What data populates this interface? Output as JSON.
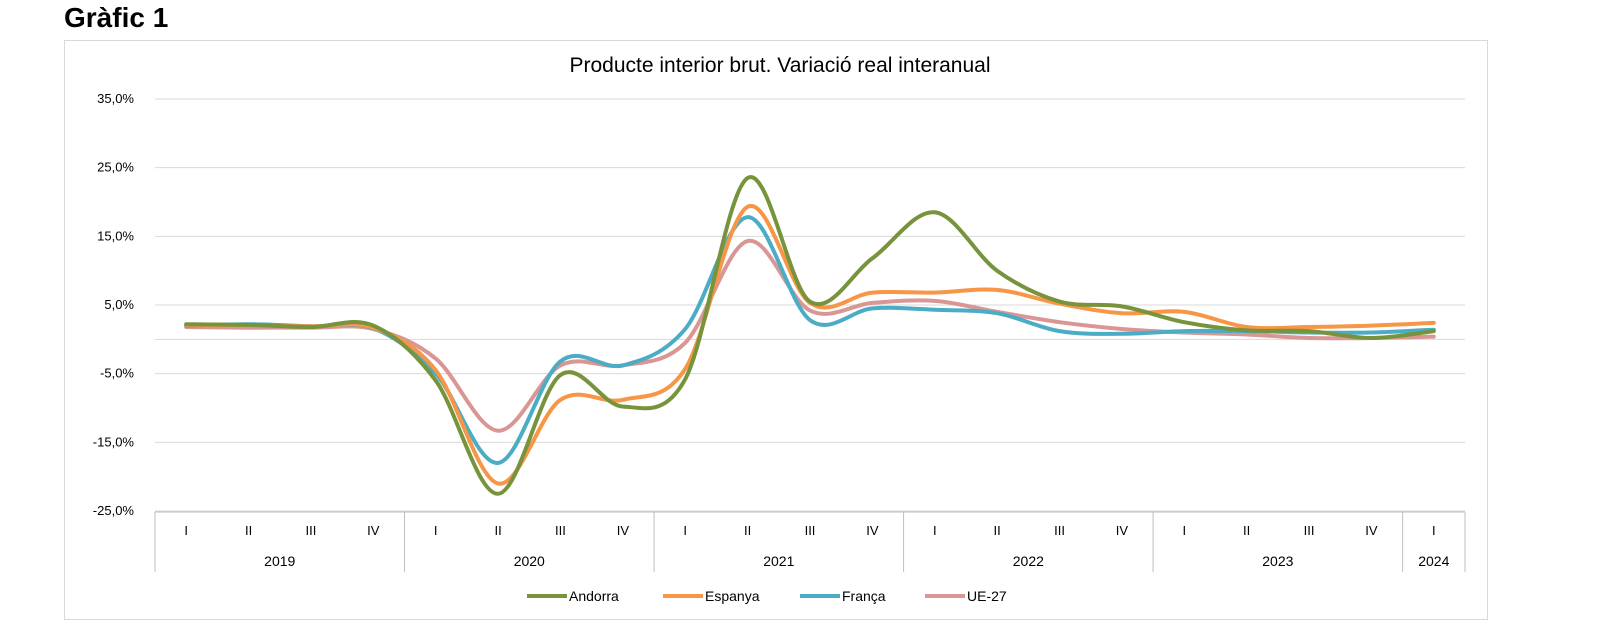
{
  "heading": "Gràfic 1",
  "chart_data": {
    "type": "line",
    "title": "Producte interior brut. Variació real interanual",
    "xlabel": "",
    "ylabel": "",
    "ylim": [
      -25,
      35
    ],
    "yticks": [
      35,
      25,
      15,
      5,
      -5,
      -15,
      -25
    ],
    "ytick_labels": [
      "35,0%",
      "25,0%",
      "15,0%",
      "5,0%",
      "-5,0%",
      "-15,0%",
      "-25,0%"
    ],
    "grid": true,
    "legend_position": "bottom",
    "categories": [
      "I",
      "II",
      "III",
      "IV",
      "I",
      "II",
      "III",
      "IV",
      "I",
      "II",
      "III",
      "IV",
      "I",
      "II",
      "III",
      "IV",
      "I",
      "II",
      "III",
      "IV",
      "I"
    ],
    "years": [
      {
        "label": "2019",
        "quarters": 4
      },
      {
        "label": "2020",
        "quarters": 4
      },
      {
        "label": "2021",
        "quarters": 4
      },
      {
        "label": "2022",
        "quarters": 4
      },
      {
        "label": "2023",
        "quarters": 4
      },
      {
        "label": "2024",
        "quarters": 1
      }
    ],
    "series": [
      {
        "name": "Andorra",
        "color": "#77933c",
        "values": [
          2.2,
          2.1,
          1.8,
          2.0,
          -6.0,
          -22.5,
          -5.2,
          -9.8,
          -5.8,
          23.5,
          5.5,
          11.8,
          18.5,
          10.0,
          5.5,
          4.8,
          2.5,
          1.3,
          1.2,
          0.2,
          1.2
        ]
      },
      {
        "name": "Espanya",
        "color": "#f79646",
        "values": [
          2.1,
          2.0,
          1.9,
          1.7,
          -4.5,
          -21.0,
          -8.8,
          -8.8,
          -4.3,
          19.3,
          5.3,
          6.8,
          6.8,
          7.2,
          5.2,
          3.8,
          4.0,
          1.8,
          1.8,
          2.0,
          2.4
        ]
      },
      {
        "name": "França",
        "color": "#4bacc6",
        "values": [
          2.0,
          2.2,
          1.9,
          1.6,
          -5.0,
          -18.0,
          -3.2,
          -3.8,
          1.5,
          17.8,
          2.8,
          4.5,
          4.3,
          3.8,
          1.2,
          0.8,
          1.2,
          1.2,
          1.0,
          1.0,
          1.4
        ]
      },
      {
        "name": "UE-27",
        "color": "#d99694",
        "values": [
          1.8,
          1.7,
          1.7,
          1.5,
          -2.8,
          -13.3,
          -3.8,
          -3.8,
          -0.5,
          14.3,
          4.2,
          5.3,
          5.6,
          4.0,
          2.5,
          1.5,
          1.0,
          0.7,
          0.2,
          0.2,
          0.4
        ]
      }
    ]
  }
}
